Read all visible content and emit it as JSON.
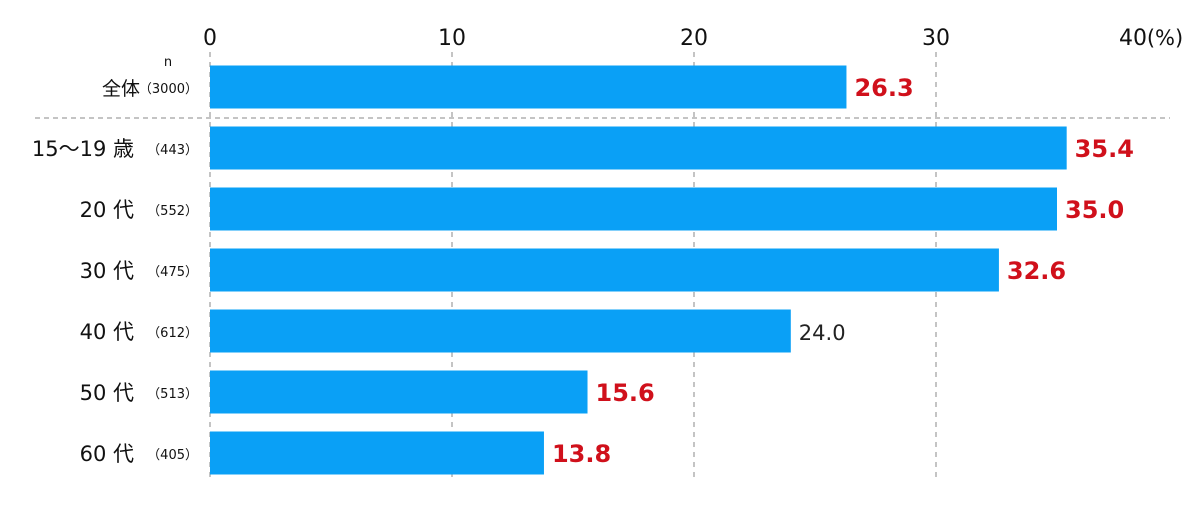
{
  "chart_data": {
    "type": "bar",
    "orientation": "horizontal",
    "title": "",
    "xlabel": "",
    "ylabel": "",
    "unit_label": "(%)",
    "n_label": "n",
    "xlim": [
      0,
      40
    ],
    "xticks": [
      "0",
      "10",
      "20",
      "30",
      "40"
    ],
    "grid": "vertical dashed",
    "categories": [
      {
        "label": "全体",
        "n": "（3000）",
        "value": 26.3,
        "value_label": "26.3",
        "highlight": true
      },
      {
        "label": "15～19 歳",
        "n": "（443）",
        "value": 35.4,
        "value_label": "35.4",
        "highlight": true
      },
      {
        "label": "20 代",
        "n": "（552）",
        "value": 35.0,
        "value_label": "35.0",
        "highlight": true
      },
      {
        "label": "30 代",
        "n": "（475）",
        "value": 32.6,
        "value_label": "32.6",
        "highlight": true
      },
      {
        "label": "40 代",
        "n": "（612）",
        "value": 24.0,
        "value_label": "24.0",
        "highlight": false
      },
      {
        "label": "50 代",
        "n": "（513）",
        "value": 15.6,
        "value_label": "15.6",
        "highlight": true
      },
      {
        "label": "60 代",
        "n": "（405）",
        "value": 13.8,
        "value_label": "13.8",
        "highlight": true
      }
    ],
    "colors": {
      "bar": "#0aa0f6",
      "highlight_label": "#d0101b",
      "normal_label": "#222222",
      "grid": "#888888"
    }
  }
}
